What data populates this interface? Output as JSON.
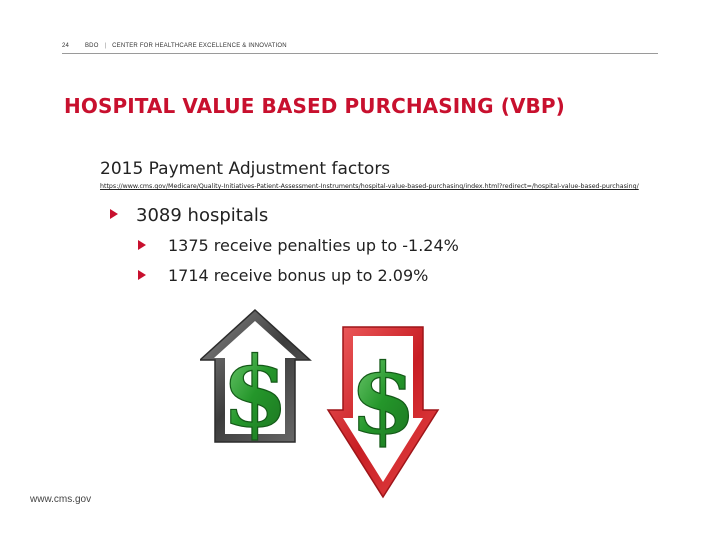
{
  "header": {
    "page_number": "24",
    "org": "BDO",
    "section": "CENTER FOR HEALTHCARE EXCELLENCE & INNOVATION"
  },
  "title": "HOSPITAL VALUE BASED PURCHASING (VBP)",
  "subtitle": "2015 Payment Adjustment factors",
  "source_link": "https://www.cms.gov/Medicare/Quality-Initiatives-Patient-Assessment-Instruments/hospital-value-based-purchasing/index.html?redirect=/hospital-value-based-purchasing/",
  "bullets": [
    {
      "text": "3089 hospitals",
      "level": 1
    },
    {
      "text": "1375 receive penalties up to -1.24%",
      "level": 2
    },
    {
      "text": "1714 receive bonus up to 2.09%",
      "level": 2
    }
  ],
  "graphics": {
    "up_arrow": {
      "icon": "dollar-up-arrow-icon",
      "color": "#555555",
      "symbol": "$"
    },
    "down_arrow": {
      "icon": "dollar-down-arrow-icon",
      "color": "#d8262e",
      "symbol": "$"
    },
    "dollar_color": "#2e9e2e"
  },
  "footer": "www.cms.gov",
  "colors": {
    "accent": "#c8102e",
    "text": "#222222"
  }
}
